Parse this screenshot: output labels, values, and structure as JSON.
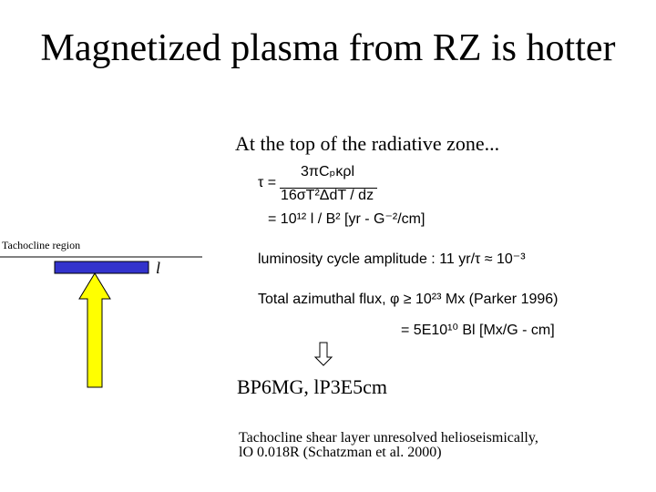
{
  "title": "Magnetized plasma from RZ is hotter",
  "subtitle": "At the top of the radiative zone...",
  "equations": {
    "tau_lhs": "τ =",
    "numerator": "3πCₚκρl",
    "denominator": "16σT²ΔdT / dz",
    "tau_scaling": "= 10¹² l / B² [yr - G⁻²/cm]",
    "luminosity": "luminosity cycle amplitude : 11 yr/τ ≈ 10⁻³",
    "flux": "Total azimuthal flux, φ ≥ 10²³ Mx (Parker 1996)",
    "flux_scaling": "= 5E10¹⁰ Bl [Mx/G - cm]"
  },
  "diagram": {
    "region_label": "Tachocline region",
    "length_label": "l"
  },
  "result": "BP6MG,  lP3E5cm",
  "note": [
    "Tachocline shear layer unresolved helioseismically,",
    "lO 0.018R  (Schatzman et al. 2000)"
  ]
}
